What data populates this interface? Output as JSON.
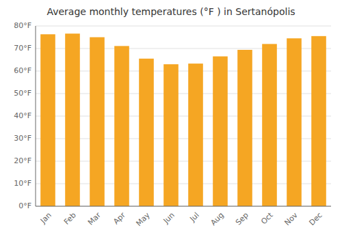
{
  "chart_data": {
    "type": "bar",
    "title": "Average monthly temperatures (°F ) in Sertanópolis",
    "categories": [
      "Jan",
      "Feb",
      "Mar",
      "Apr",
      "May",
      "Jun",
      "Jul",
      "Aug",
      "Sep",
      "Oct",
      "Nov",
      "Dec"
    ],
    "values": [
      76.3,
      76.6,
      75.0,
      71.1,
      65.5,
      63.0,
      63.3,
      66.5,
      69.4,
      72.0,
      74.5,
      75.5
    ],
    "color": "#F5A623",
    "ylim": [
      0,
      80
    ],
    "yticks": [
      {
        "value": 0,
        "label": "0°F"
      },
      {
        "value": 10,
        "label": "10°F"
      },
      {
        "value": 20,
        "label": "20°F"
      },
      {
        "value": 30,
        "label": "30°F"
      },
      {
        "value": 40,
        "label": "40°F"
      },
      {
        "value": 50,
        "label": "50°F"
      },
      {
        "value": 60,
        "label": "60°F"
      },
      {
        "value": 70,
        "label": "70°F"
      },
      {
        "value": 80,
        "label": "80°F"
      }
    ],
    "grid": true
  }
}
